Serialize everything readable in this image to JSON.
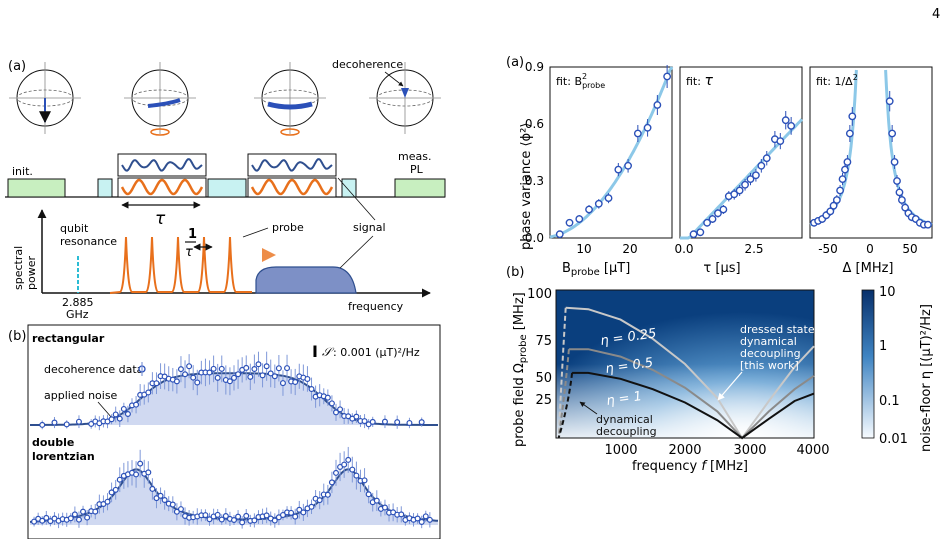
{
  "page_number": "4",
  "left": {
    "panel_a_label": "(a)",
    "decoherence_label": "decoherence",
    "init_label": "init.",
    "meas_label_1": "meas.",
    "meas_label_2": "PL",
    "tau_label": "τ",
    "inv_tau_num": "1",
    "inv_tau_den": "τ",
    "qubit_label_1": "qubit",
    "qubit_label_2": "resonance",
    "probe_label": "probe",
    "signal_label": "signal",
    "spectral_label_1": "spectral",
    "spectral_label_2": "power",
    "freq_value_1": "2.885",
    "freq_value_2": "GHz",
    "frequency_label": "frequency",
    "panel_b_label": "(b)",
    "rect_label": "rectangular",
    "double_label_1": "double",
    "double_label_2": "lorentzian",
    "scale_label": ": 0.001 (μT)²/Hz",
    "legend_data": "decoherence data",
    "legend_noise": "applied noise",
    "colors": {
      "probe": "#e8701c",
      "signal": "#2f4f8f",
      "qubit": "#2bbcd4",
      "box": "#c8f2f2",
      "init": "#c8efc0",
      "data": "#2b50b8"
    }
  },
  "right": {
    "panel_a_label": "(a)",
    "panel_b_label": "(b)",
    "ylabel_a": "phase variance ⟨ϕ²⟩",
    "yticks_a": [
      "0.0",
      "0.3",
      "0.6",
      "0.9"
    ],
    "sub1": {
      "fit": "fit:  B²probe",
      "xticks": [
        "10",
        "20"
      ],
      "xlabel": "B_probe [μT]"
    },
    "sub2": {
      "fit": "fit:  τ",
      "xticks": [
        "0.0",
        "2.5"
      ],
      "xlabel": "τ [μs]"
    },
    "sub3": {
      "fit": "fit:  1/Δ²",
      "xticks": [
        "-50",
        "0",
        "50"
      ],
      "xlabel": "Δ [MHz]"
    },
    "ylabel_b": "probe field Ω_probe [MHz]",
    "xlabel_b": "frequency f [MHz]",
    "yticks_b": [
      "25",
      "50",
      "75",
      "100"
    ],
    "xticks_b": [
      "1000",
      "2000",
      "3000",
      "4000"
    ],
    "eta_labels": [
      "η = 0.25",
      "η = 0.5",
      "η = 1"
    ],
    "dressed_text": [
      "dressed state",
      "dynamical",
      "decoupling",
      "[this work]"
    ],
    "dd_text": [
      "dynamical",
      "decoupling"
    ],
    "cbar_label": "noise-floor η [(μT)²/Hz]",
    "cbar_ticks": [
      "10",
      "1",
      "0.1",
      "0.01"
    ]
  },
  "chart_data": [
    {
      "type": "scatter",
      "title": "fit: B²probe",
      "xlabel": "B_probe [μT]",
      "ylabel": "phase variance ⟨ϕ²⟩",
      "xlim": [
        2,
        27
      ],
      "ylim": [
        0,
        0.9
      ],
      "x": [
        4,
        6,
        8,
        10,
        12,
        14,
        16,
        18,
        20,
        22,
        24,
        26
      ],
      "y": [
        0.02,
        0.08,
        0.1,
        0.15,
        0.18,
        0.21,
        0.36,
        0.38,
        0.55,
        0.58,
        0.7,
        0.85
      ],
      "fit": "quadratic"
    },
    {
      "type": "scatter",
      "title": "fit: τ",
      "xlabel": "τ [μs]",
      "xlim": [
        0,
        4.5
      ],
      "ylim": [
        0,
        0.9
      ],
      "x": [
        0.5,
        0.75,
        1.0,
        1.2,
        1.4,
        1.6,
        1.8,
        2.0,
        2.2,
        2.4,
        2.6,
        2.8,
        3.0,
        3.2,
        3.5,
        3.7,
        3.9,
        4.1
      ],
      "y": [
        0.02,
        0.03,
        0.08,
        0.1,
        0.13,
        0.15,
        0.22,
        0.23,
        0.25,
        0.28,
        0.31,
        0.33,
        0.38,
        0.42,
        0.52,
        0.51,
        0.62,
        0.59
      ],
      "fit": "linear"
    },
    {
      "type": "scatter",
      "title": "fit: 1/Δ²",
      "xlabel": "Δ [MHz]",
      "xlim": [
        -75,
        75
      ],
      "ylim": [
        0,
        0.9
      ],
      "x": [
        -70,
        -65,
        -60,
        -55,
        -50,
        -46,
        -42,
        -38,
        -35,
        -32,
        -29,
        -26,
        -23,
        23,
        26,
        29,
        32,
        35,
        38,
        42,
        46,
        50,
        55,
        60,
        65,
        70
      ],
      "y": [
        0.08,
        0.09,
        0.1,
        0.12,
        0.14,
        0.17,
        0.2,
        0.25,
        0.31,
        0.36,
        0.4,
        0.55,
        0.64,
        0.72,
        0.55,
        0.4,
        0.3,
        0.24,
        0.2,
        0.16,
        0.13,
        0.11,
        0.1,
        0.08,
        0.07,
        0.07
      ],
      "fit": "inverse-square"
    },
    {
      "type": "heatmap",
      "xlabel": "frequency f [MHz]",
      "ylabel": "probe field Ω_probe [MHz]",
      "xlim": [
        0,
        4000
      ],
      "ylim": [
        0,
        100
      ],
      "colorbar": {
        "label": "noise-floor η [(μT)²/Hz]",
        "scale": "log",
        "range": [
          0.01,
          10
        ]
      },
      "series": [
        {
          "name": "η = 0.25",
          "x": [
            150,
            500,
            1000,
            1500,
            2000,
            2500,
            2885,
            3300,
            3700,
            4000
          ],
          "y": [
            88,
            87,
            80,
            67,
            50,
            27,
            0,
            25,
            48,
            62
          ]
        },
        {
          "name": "η = 0.5",
          "x": [
            200,
            500,
            1000,
            1500,
            2000,
            2500,
            2885,
            3300,
            3700,
            4000
          ],
          "y": [
            60,
            60,
            55,
            46,
            34,
            18,
            0,
            18,
            33,
            42
          ]
        },
        {
          "name": "η = 1",
          "x": [
            250,
            500,
            1000,
            1500,
            2000,
            2500,
            2885,
            3300,
            3700,
            4000
          ],
          "y": [
            44,
            44,
            40,
            33,
            24,
            12,
            0,
            13,
            25,
            30
          ]
        }
      ]
    }
  ]
}
